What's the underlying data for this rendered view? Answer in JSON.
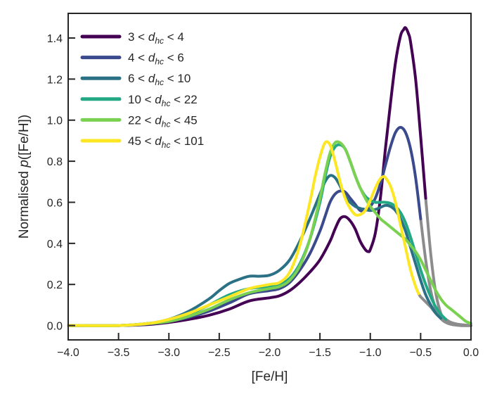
{
  "chart_data": {
    "type": "line",
    "title": "",
    "xlabel": "[Fe/H]",
    "ylabel": "Normalised p([Fe/H])",
    "ylabel_parts": {
      "pre": "Normalised ",
      "italic": "p",
      "post": "([Fe/H])"
    },
    "xlim": [
      -4.0,
      0.0
    ],
    "ylim": [
      -0.07,
      1.52
    ],
    "grid": false,
    "legend_position": "top-left",
    "x_ticks": [
      -4.0,
      -3.5,
      -3.0,
      -2.5,
      -2.0,
      -1.5,
      -1.0,
      -0.5,
      0.0
    ],
    "x_tick_labels": [
      "−4.0",
      "−3.5",
      "−3.0",
      "−2.5",
      "−2.0",
      "−1.5",
      "−1.0",
      "−0.5",
      "0.0"
    ],
    "y_ticks": [
      0.0,
      0.2,
      0.4,
      0.6,
      0.8,
      1.0,
      1.2,
      1.4
    ],
    "y_tick_labels": [
      "0.0",
      "0.2",
      "0.4",
      "0.6",
      "0.8",
      "1.0",
      "1.2",
      "1.4"
    ],
    "series": [
      {
        "name": "3 < d_hc < 4",
        "label": {
          "pre": "3 < ",
          "sub": "hc",
          "post": " < 4"
        },
        "color": "#440154",
        "x": [
          -4.0,
          -3.5,
          -3.2,
          -3.0,
          -2.8,
          -2.6,
          -2.4,
          -2.2,
          -2.0,
          -1.9,
          -1.8,
          -1.7,
          -1.6,
          -1.5,
          -1.4,
          -1.35,
          -1.3,
          -1.25,
          -1.2,
          -1.15,
          -1.1,
          -1.05,
          -1.02,
          -1.0,
          -0.95,
          -0.9,
          -0.85,
          -0.8,
          -0.75,
          -0.7,
          -0.67,
          -0.65,
          -0.62,
          -0.6,
          -0.55,
          -0.5,
          -0.45,
          -0.4,
          -0.35,
          -0.3,
          -0.25,
          -0.2,
          -0.15,
          -0.1,
          -0.05,
          0.0
        ],
        "y": [
          0.0,
          0.0,
          0.005,
          0.015,
          0.03,
          0.05,
          0.08,
          0.12,
          0.135,
          0.145,
          0.17,
          0.21,
          0.26,
          0.32,
          0.41,
          0.47,
          0.52,
          0.53,
          0.51,
          0.47,
          0.41,
          0.37,
          0.36,
          0.37,
          0.45,
          0.62,
          0.86,
          1.08,
          1.28,
          1.41,
          1.44,
          1.45,
          1.42,
          1.38,
          1.2,
          0.92,
          0.62,
          0.35,
          0.16,
          0.06,
          0.02,
          0.01,
          0.003,
          0.0,
          0.0,
          0.0
        ],
        "tail_from": -0.45
      },
      {
        "name": "4 < d_hc < 6",
        "label": {
          "pre": "4 < ",
          "sub": "hc",
          "post": " < 6"
        },
        "color": "#3b4a8c",
        "x": [
          -4.0,
          -3.5,
          -3.2,
          -3.0,
          -2.8,
          -2.6,
          -2.4,
          -2.2,
          -2.0,
          -1.9,
          -1.8,
          -1.7,
          -1.6,
          -1.5,
          -1.45,
          -1.4,
          -1.35,
          -1.3,
          -1.25,
          -1.2,
          -1.15,
          -1.1,
          -1.05,
          -1.0,
          -0.95,
          -0.9,
          -0.85,
          -0.8,
          -0.75,
          -0.7,
          -0.65,
          -0.6,
          -0.55,
          -0.5,
          -0.45,
          -0.4,
          -0.35,
          -0.3,
          -0.25,
          -0.2,
          -0.15,
          -0.1,
          -0.05,
          0.0
        ],
        "y": [
          0.0,
          0.0,
          0.007,
          0.02,
          0.04,
          0.07,
          0.11,
          0.155,
          0.17,
          0.18,
          0.21,
          0.27,
          0.35,
          0.46,
          0.53,
          0.6,
          0.64,
          0.655,
          0.65,
          0.62,
          0.59,
          0.56,
          0.56,
          0.58,
          0.62,
          0.69,
          0.78,
          0.87,
          0.94,
          0.965,
          0.94,
          0.86,
          0.72,
          0.52,
          0.32,
          0.17,
          0.08,
          0.035,
          0.015,
          0.006,
          0.002,
          0.0,
          0.0,
          0.0
        ],
        "tail_from": -0.5
      },
      {
        "name": "6 < d_hc < 10",
        "label": {
          "pre": "6 < ",
          "sub": "hc",
          "post": " < 10"
        },
        "color": "#2a7185",
        "x": [
          -4.0,
          -3.5,
          -3.2,
          -3.0,
          -2.8,
          -2.6,
          -2.5,
          -2.4,
          -2.3,
          -2.2,
          -2.1,
          -2.0,
          -1.9,
          -1.8,
          -1.7,
          -1.6,
          -1.5,
          -1.45,
          -1.4,
          -1.35,
          -1.3,
          -1.25,
          -1.2,
          -1.15,
          -1.1,
          -1.05,
          -1.0,
          -0.95,
          -0.9,
          -0.85,
          -0.8,
          -0.75,
          -0.7,
          -0.65,
          -0.6,
          -0.55,
          -0.5,
          -0.45,
          -0.4,
          -0.35,
          -0.3,
          -0.25,
          -0.2,
          -0.15,
          -0.1,
          -0.05,
          0.0
        ],
        "y": [
          0.0,
          0.0,
          0.01,
          0.03,
          0.07,
          0.13,
          0.17,
          0.205,
          0.225,
          0.24,
          0.24,
          0.245,
          0.27,
          0.32,
          0.41,
          0.52,
          0.64,
          0.7,
          0.73,
          0.72,
          0.68,
          0.63,
          0.6,
          0.58,
          0.57,
          0.565,
          0.56,
          0.565,
          0.575,
          0.585,
          0.58,
          0.56,
          0.52,
          0.46,
          0.38,
          0.3,
          0.22,
          0.15,
          0.1,
          0.06,
          0.035,
          0.02,
          0.01,
          0.004,
          0.0,
          0.0,
          0.0
        ],
        "tail_from": -0.3
      },
      {
        "name": "10 < d_hc < 22",
        "label": {
          "pre": "10 < ",
          "sub": "hc",
          "post": " < 22"
        },
        "color": "#22a884",
        "x": [
          -4.0,
          -3.5,
          -3.2,
          -3.0,
          -2.8,
          -2.6,
          -2.4,
          -2.2,
          -2.0,
          -1.9,
          -1.8,
          -1.7,
          -1.6,
          -1.5,
          -1.45,
          -1.4,
          -1.35,
          -1.3,
          -1.25,
          -1.2,
          -1.15,
          -1.1,
          -1.05,
          -1.0,
          -0.95,
          -0.9,
          -0.85,
          -0.8,
          -0.75,
          -0.7,
          -0.65,
          -0.6,
          -0.55,
          -0.5,
          -0.45,
          -0.4,
          -0.35,
          -0.3,
          -0.25,
          -0.2,
          -0.15,
          -0.1,
          -0.05,
          0.0
        ],
        "y": [
          0.0,
          0.0,
          0.01,
          0.025,
          0.055,
          0.1,
          0.15,
          0.18,
          0.19,
          0.2,
          0.23,
          0.3,
          0.42,
          0.6,
          0.72,
          0.82,
          0.87,
          0.88,
          0.86,
          0.8,
          0.73,
          0.67,
          0.63,
          0.61,
          0.6,
          0.6,
          0.6,
          0.595,
          0.58,
          0.55,
          0.5,
          0.43,
          0.35,
          0.27,
          0.2,
          0.14,
          0.09,
          0.055,
          0.03,
          0.015,
          0.007,
          0.003,
          0.0,
          0.0
        ],
        "tail_from": -0.25
      },
      {
        "name": "22 < d_hc < 45",
        "label": {
          "pre": "22 < ",
          "sub": "hc",
          "post": " < 45"
        },
        "color": "#7ad151",
        "x": [
          -4.0,
          -3.5,
          -3.2,
          -3.0,
          -2.8,
          -2.6,
          -2.4,
          -2.2,
          -2.0,
          -1.9,
          -1.8,
          -1.7,
          -1.6,
          -1.5,
          -1.45,
          -1.4,
          -1.35,
          -1.3,
          -1.25,
          -1.2,
          -1.15,
          -1.1,
          -1.05,
          -1.0,
          -0.95,
          -0.9,
          -0.85,
          -0.8,
          -0.75,
          -0.7,
          -0.65,
          -0.6,
          -0.55,
          -0.5,
          -0.45,
          -0.4,
          -0.35,
          -0.3,
          -0.25,
          -0.2,
          -0.15,
          -0.1,
          -0.05,
          0.0
        ],
        "y": [
          0.0,
          0.0,
          0.01,
          0.02,
          0.045,
          0.08,
          0.125,
          0.16,
          0.18,
          0.19,
          0.22,
          0.29,
          0.42,
          0.62,
          0.74,
          0.84,
          0.89,
          0.89,
          0.86,
          0.8,
          0.73,
          0.67,
          0.62,
          0.58,
          0.55,
          0.52,
          0.5,
          0.48,
          0.46,
          0.44,
          0.42,
          0.39,
          0.36,
          0.32,
          0.27,
          0.22,
          0.17,
          0.13,
          0.1,
          0.08,
          0.06,
          0.04,
          0.02,
          0.01
        ],
        "tail_from": null
      },
      {
        "name": "45 < d_hc < 101",
        "label": {
          "pre": "45 < ",
          "sub": "hc",
          "post": " < 101"
        },
        "color": "#fde725",
        "x": [
          -4.0,
          -3.5,
          -3.2,
          -3.0,
          -2.8,
          -2.6,
          -2.4,
          -2.2,
          -2.0,
          -1.9,
          -1.8,
          -1.7,
          -1.6,
          -1.55,
          -1.5,
          -1.45,
          -1.4,
          -1.35,
          -1.3,
          -1.25,
          -1.2,
          -1.15,
          -1.1,
          -1.05,
          -1.0,
          -0.95,
          -0.9,
          -0.87,
          -0.85,
          -0.8,
          -0.75,
          -0.7,
          -0.65,
          -0.6,
          -0.55,
          -0.52
        ],
        "y": [
          0.0,
          0.0,
          0.01,
          0.03,
          0.06,
          0.1,
          0.14,
          0.18,
          0.2,
          0.21,
          0.26,
          0.39,
          0.6,
          0.72,
          0.82,
          0.89,
          0.88,
          0.8,
          0.7,
          0.62,
          0.57,
          0.54,
          0.54,
          0.56,
          0.61,
          0.67,
          0.715,
          0.725,
          0.72,
          0.68,
          0.6,
          0.49,
          0.38,
          0.27,
          0.19,
          0.155
        ],
        "tail_from": null
      }
    ],
    "tail_segment": {
      "color": "#8c8c8c",
      "x": [
        -0.52,
        -0.5,
        -0.45,
        -0.4,
        -0.35,
        -0.3,
        -0.25,
        -0.2,
        -0.15,
        -0.1,
        -0.05,
        0.0
      ],
      "y": [
        0.155,
        0.14,
        0.115,
        0.09,
        0.06,
        0.04,
        0.025,
        0.015,
        0.008,
        0.004,
        0.002,
        0.0
      ]
    }
  }
}
